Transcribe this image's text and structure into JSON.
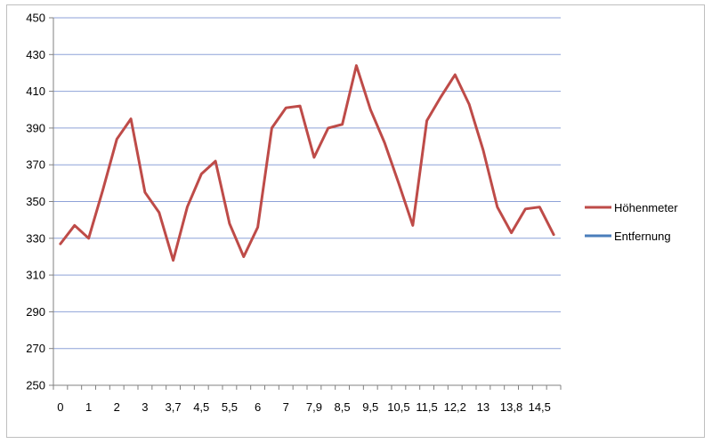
{
  "chart_data": {
    "type": "line",
    "title": "",
    "xlabel": "",
    "ylabel": "",
    "ylim": [
      250,
      450
    ],
    "yticks": [
      250,
      270,
      290,
      310,
      330,
      350,
      370,
      390,
      410,
      430,
      450
    ],
    "grid": true,
    "legend_position": "right",
    "x_tick_labels": [
      "0",
      "1",
      "2",
      "3",
      "3,7",
      "4,5",
      "5,5",
      "6",
      "7",
      "7,9",
      "8,5",
      "9,5",
      "10,5",
      "11,5",
      "12,2",
      "13",
      "13,8",
      "14,5"
    ],
    "series": [
      {
        "name": "Höhenmeter",
        "color": "#be4b48",
        "values": [
          327,
          337,
          330,
          356,
          384,
          395,
          355,
          344,
          318,
          347,
          365,
          372,
          338,
          320,
          336,
          390,
          401,
          402,
          374,
          390,
          392,
          424,
          400,
          382,
          360,
          337,
          394,
          407,
          419,
          403,
          378,
          347,
          333,
          346,
          347,
          332
        ]
      },
      {
        "name": "Entfernung",
        "color": "#4a7ebb",
        "values": []
      }
    ]
  }
}
